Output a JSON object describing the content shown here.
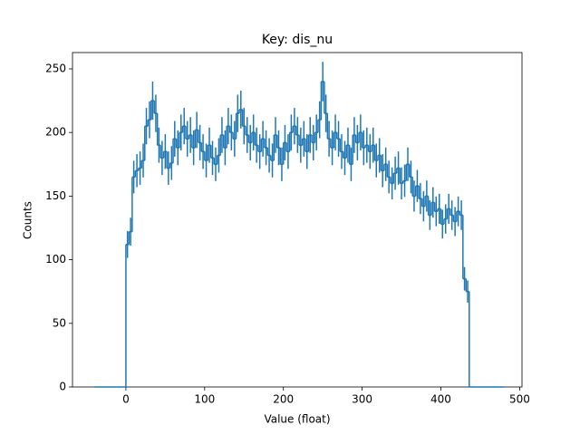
{
  "chart_data": {
    "type": "histogram",
    "title": "Key: dis_nu",
    "xlabel": "Value (float)",
    "ylabel": "Counts",
    "color": "#1f77b4",
    "bins": [
      -40,
      -36,
      -32,
      -28,
      -24,
      -20,
      -16,
      -12,
      -8,
      -4,
      0,
      4,
      8,
      12,
      16,
      20,
      24,
      28,
      32,
      36,
      40,
      44,
      48,
      52,
      56,
      60,
      64,
      68,
      72,
      76,
      80,
      84,
      88,
      92,
      96,
      100,
      104,
      108,
      112,
      116,
      120,
      124,
      128,
      132,
      136,
      140,
      144,
      148,
      152,
      156,
      160,
      164,
      168,
      172,
      176,
      180,
      184,
      188,
      192,
      196,
      200,
      204,
      208,
      212,
      216,
      220,
      224,
      228,
      232,
      236,
      240,
      244,
      248,
      252,
      256,
      260,
      264,
      268,
      272,
      276,
      280,
      284,
      288,
      292,
      296,
      300,
      304,
      308,
      312,
      316,
      320,
      324,
      328,
      332,
      336,
      340,
      344,
      348,
      352,
      356,
      360,
      364,
      368,
      372,
      376,
      380,
      384,
      388,
      392,
      396,
      400,
      404,
      408,
      412,
      416,
      420,
      424,
      428,
      432,
      436,
      440,
      444,
      448,
      452,
      456,
      460,
      464,
      468,
      472,
      476,
      480
    ],
    "counts": [
      0,
      0,
      0,
      0,
      0,
      0,
      0,
      0,
      0,
      0,
      112,
      122,
      165,
      170,
      172,
      178,
      205,
      210,
      225,
      215,
      190,
      180,
      185,
      172,
      176,
      195,
      188,
      200,
      205,
      195,
      198,
      188,
      202,
      192,
      185,
      178,
      190,
      180,
      175,
      182,
      198,
      188,
      205,
      200,
      195,
      215,
      218,
      205,
      198,
      192,
      200,
      190,
      185,
      195,
      188,
      182,
      178,
      198,
      188,
      175,
      192,
      185,
      200,
      205,
      198,
      190,
      195,
      185,
      198,
      192,
      200,
      210,
      240,
      215,
      195,
      188,
      200,
      195,
      185,
      180,
      190,
      175,
      198,
      192,
      200,
      188,
      190,
      185,
      190,
      178,
      182,
      170,
      175,
      165,
      160,
      168,
      172,
      160,
      162,
      175,
      165,
      150,
      158,
      148,
      142,
      150,
      135,
      145,
      138,
      140,
      128,
      132,
      140,
      135,
      130,
      138,
      135,
      85,
      75,
      0,
      0,
      0,
      0,
      0,
      0,
      0,
      0,
      0,
      0,
      0
    ],
    "errors": [
      0,
      0,
      0,
      0,
      0,
      0,
      0,
      0,
      0,
      0,
      10.6,
      11.0,
      12.8,
      13.0,
      13.1,
      13.3,
      14.3,
      14.5,
      15.0,
      14.7,
      13.8,
      13.4,
      13.6,
      13.1,
      13.3,
      14.0,
      13.7,
      14.1,
      14.3,
      14.0,
      14.1,
      13.7,
      14.2,
      13.9,
      13.6,
      13.3,
      13.8,
      13.4,
      13.2,
      13.5,
      14.1,
      13.7,
      14.3,
      14.1,
      14.0,
      14.7,
      14.8,
      14.3,
      14.1,
      13.9,
      14.1,
      13.8,
      13.6,
      14.0,
      13.7,
      13.5,
      13.3,
      14.1,
      13.7,
      13.2,
      13.9,
      13.6,
      14.1,
      14.3,
      14.1,
      13.8,
      14.0,
      13.6,
      14.1,
      13.9,
      14.1,
      14.5,
      15.5,
      14.7,
      14.0,
      13.7,
      14.1,
      14.0,
      13.6,
      13.4,
      13.8,
      13.2,
      14.1,
      13.9,
      14.1,
      13.7,
      13.8,
      13.6,
      13.8,
      13.3,
      13.5,
      13.0,
      13.2,
      12.8,
      12.6,
      13.0,
      13.1,
      12.6,
      12.7,
      13.2,
      12.8,
      12.2,
      12.6,
      12.2,
      11.9,
      12.2,
      11.6,
      12.0,
      11.7,
      11.8,
      11.3,
      11.5,
      11.8,
      11.6,
      11.4,
      11.7,
      11.6,
      9.2,
      8.7,
      0,
      0,
      0,
      0,
      0,
      0,
      0,
      0,
      0,
      0,
      0
    ],
    "xlim": [
      -67.8,
      503
    ],
    "xticks": [
      0,
      100,
      200,
      300,
      400,
      500
    ],
    "ylim": [
      0,
      262.8
    ],
    "yticks": [
      0,
      50,
      100,
      150,
      200,
      250
    ]
  }
}
